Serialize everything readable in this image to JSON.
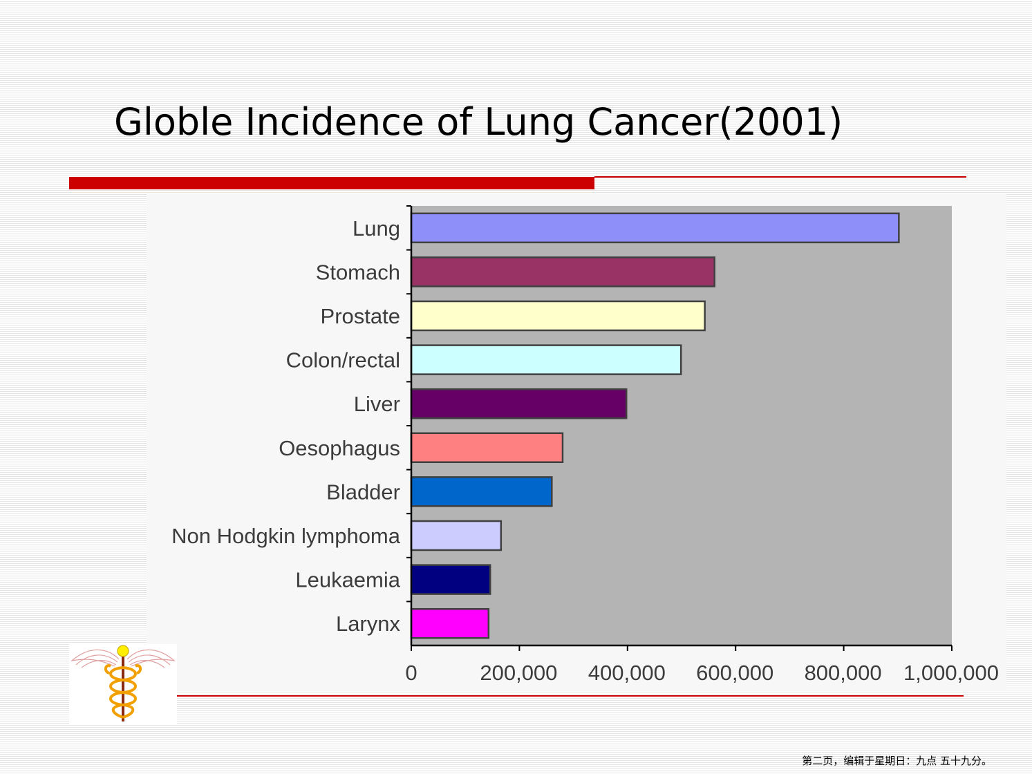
{
  "slide": {
    "title": "Globle Incidence of Lung Cancer(2001)",
    "footer": "第二页，编辑于星期日：九点 五十九分。"
  },
  "colors": {
    "accent": "#cc0000",
    "plot_area": "#b4b4b4",
    "bar_border": "#404040"
  },
  "logo": {
    "icon": "caduceus-icon"
  },
  "chart_data": {
    "type": "bar",
    "orientation": "horizontal",
    "title": "",
    "xlabel": "",
    "ylabel": "",
    "categories": [
      "Lung",
      "Stomach",
      "Prostate",
      "Colon/rectal",
      "Liver",
      "Oesophagus",
      "Bladder",
      "Non Hodgkin lymphoma",
      "Leukaemia",
      "Larynx"
    ],
    "values": [
      902000,
      561000,
      543000,
      499000,
      398000,
      280000,
      260000,
      166000,
      146000,
      143000
    ],
    "colors": [
      "#8f8ffa",
      "#993366",
      "#ffffcc",
      "#ccffff",
      "#660066",
      "#ff8080",
      "#0066cc",
      "#ccccff",
      "#000080",
      "#ff00ff"
    ],
    "xlim": [
      0,
      1000000
    ],
    "xticks": [
      0,
      200000,
      400000,
      600000,
      800000,
      1000000
    ],
    "xtick_labels": [
      "0",
      "200,000",
      "400,000",
      "600,000",
      "800,000",
      "1,000,000"
    ],
    "grid": false,
    "legend": false
  }
}
